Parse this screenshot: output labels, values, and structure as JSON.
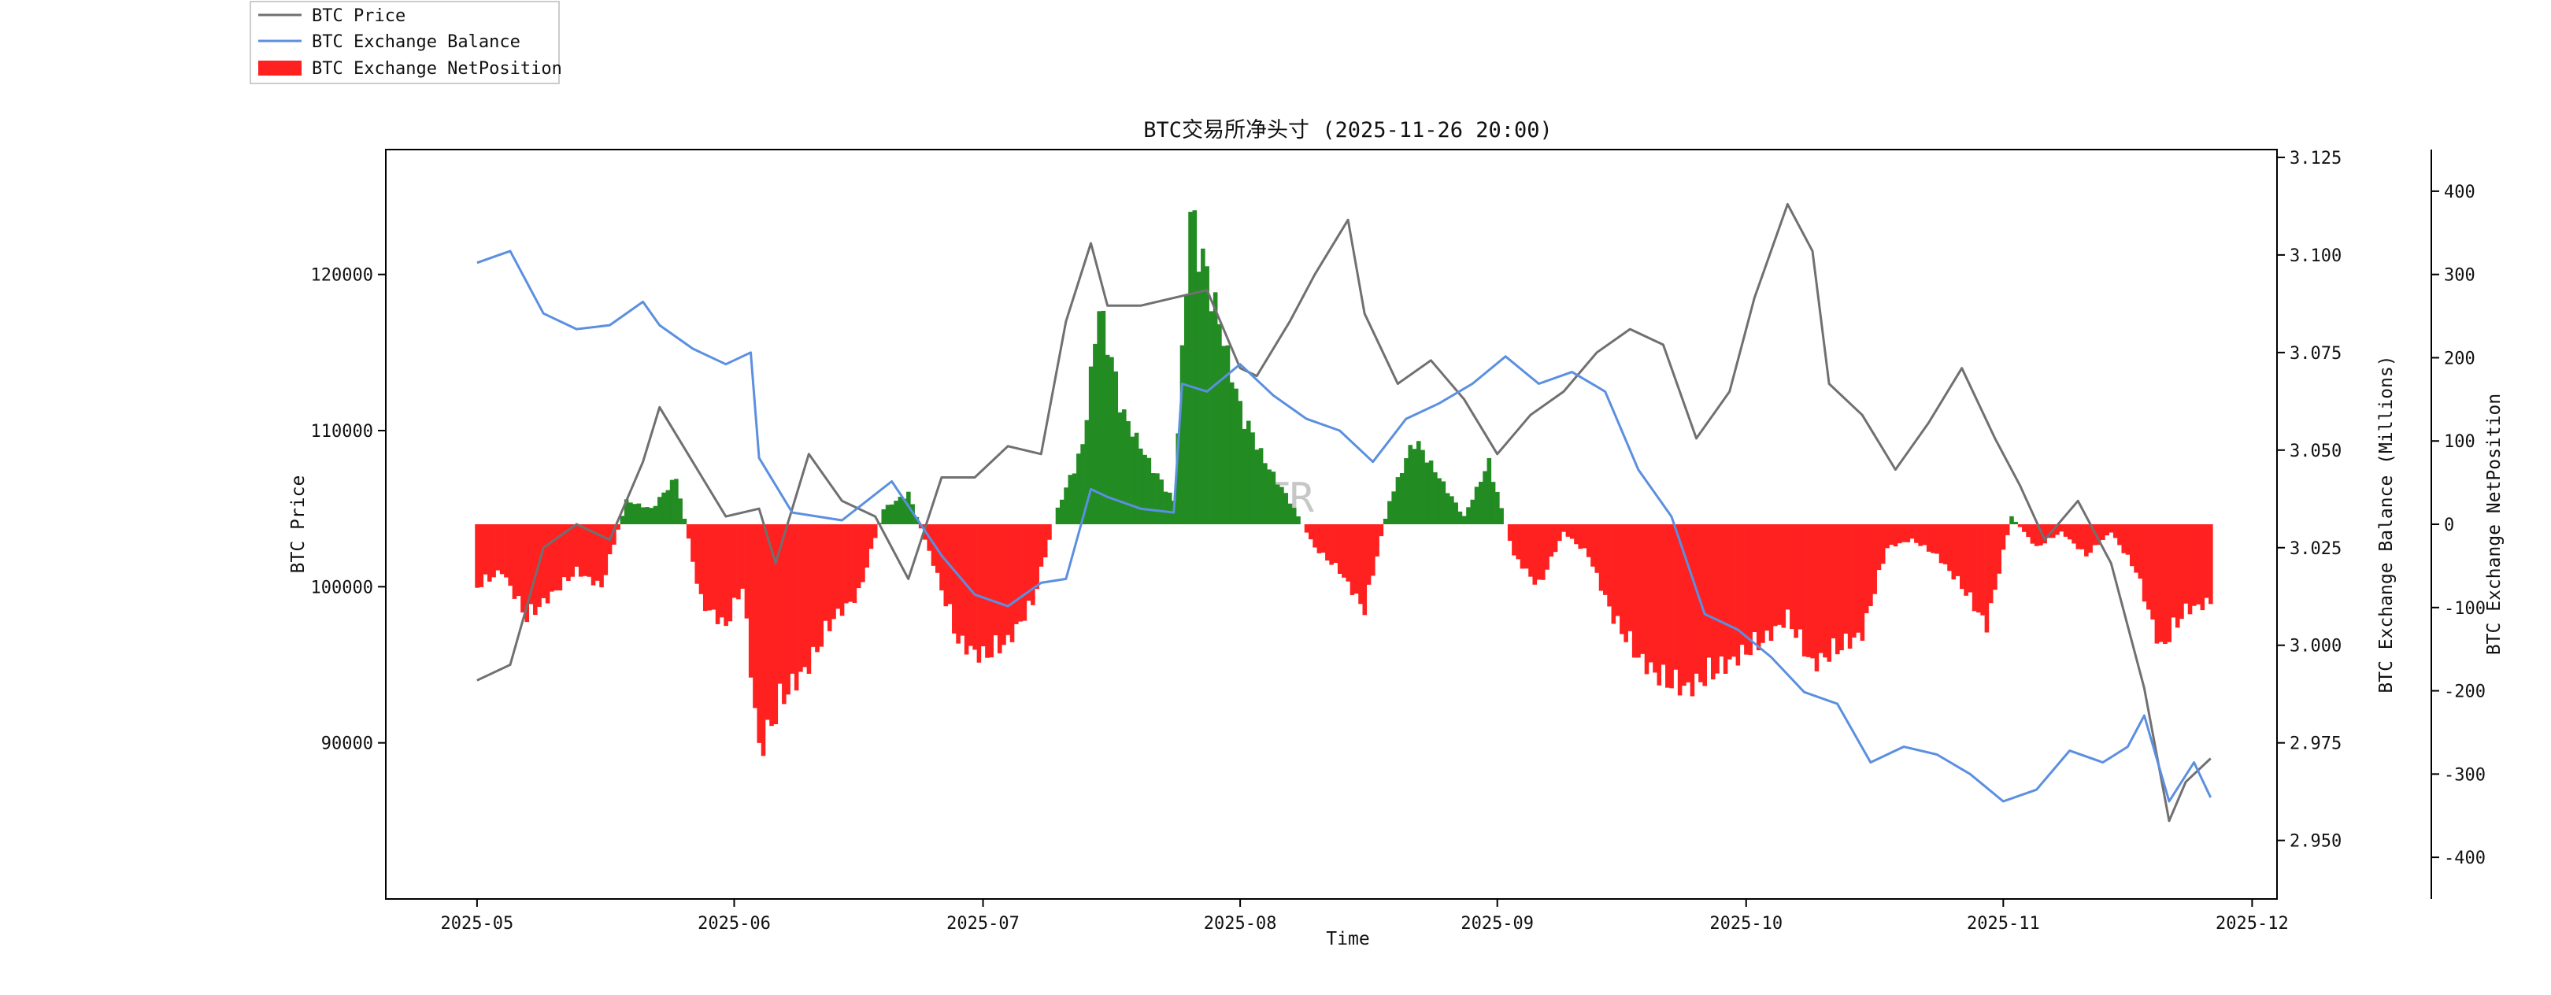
{
  "chart_data": {
    "type": "line",
    "title": "BTC交易所净头寸 (2025-11-26 20:00)",
    "xlabel": "Time",
    "ylabel_left": "BTC Price",
    "ylabel_right1": "BTC Exchange Balance (Millions)",
    "ylabel_right2": "BTC Exchange NetPosition",
    "watermark": "MTR",
    "x_range": [
      "2025-04-20",
      "2025-12-04"
    ],
    "x_ticks": [
      "2025-05",
      "2025-06",
      "2025-07",
      "2025-08",
      "2025-09",
      "2025-10",
      "2025-11",
      "2025-12"
    ],
    "x_tick_dates": [
      "2025-05-01",
      "2025-06-01",
      "2025-07-01",
      "2025-08-01",
      "2025-09-01",
      "2025-10-01",
      "2025-11-01",
      "2025-12-01"
    ],
    "price_axis": {
      "range": [
        80000,
        128000
      ],
      "ticks": [
        "90000",
        "100000",
        "110000",
        "120000"
      ],
      "tick_values": [
        90000,
        100000,
        110000,
        120000
      ]
    },
    "balance_axis": {
      "range": [
        2.935,
        3.127
      ],
      "ticks": [
        "2.950",
        "2.975",
        "3.000",
        "3.025",
        "3.050",
        "3.075",
        "3.100",
        "3.125"
      ],
      "tick_values": [
        2.95,
        2.975,
        3.0,
        3.025,
        3.05,
        3.075,
        3.1,
        3.125
      ]
    },
    "netposition_axis": {
      "range": [
        -450,
        450
      ],
      "ticks": [
        "-400",
        "-300",
        "-200",
        "-100",
        "0",
        "100",
        "200",
        "300",
        "400"
      ],
      "tick_values": [
        -400,
        -300,
        -200,
        -100,
        0,
        100,
        200,
        300,
        400
      ]
    },
    "legend": {
      "placement": "outside-top-left",
      "entries": [
        "BTC Price",
        "BTC Exchange Balance",
        "BTC Exchange NetPosition"
      ]
    },
    "series": [
      {
        "name": "BTC Price",
        "axis": "left",
        "kind": "line",
        "color": "#707070",
        "x": [
          "2025-05-01",
          "2025-05-05",
          "2025-05-09",
          "2025-05-13",
          "2025-05-17",
          "2025-05-21",
          "2025-05-23",
          "2025-05-27",
          "2025-05-31",
          "2025-06-04",
          "2025-06-06",
          "2025-06-10",
          "2025-06-14",
          "2025-06-18",
          "2025-06-22",
          "2025-06-26",
          "2025-06-30",
          "2025-07-04",
          "2025-07-08",
          "2025-07-11",
          "2025-07-14",
          "2025-07-16",
          "2025-07-20",
          "2025-07-24",
          "2025-07-28",
          "2025-08-01",
          "2025-08-03",
          "2025-08-07",
          "2025-08-10",
          "2025-08-14",
          "2025-08-16",
          "2025-08-20",
          "2025-08-24",
          "2025-08-28",
          "2025-09-01",
          "2025-09-05",
          "2025-09-09",
          "2025-09-13",
          "2025-09-17",
          "2025-09-21",
          "2025-09-25",
          "2025-09-29",
          "2025-10-02",
          "2025-10-06",
          "2025-10-09",
          "2025-10-11",
          "2025-10-15",
          "2025-10-19",
          "2025-10-23",
          "2025-10-27",
          "2025-10-31",
          "2025-11-03",
          "2025-11-06",
          "2025-11-10",
          "2025-11-14",
          "2025-11-18",
          "2025-11-21",
          "2025-11-23",
          "2025-11-26"
        ],
        "values": [
          94000,
          95000,
          102500,
          104000,
          103000,
          108000,
          111500,
          108000,
          104500,
          105000,
          101500,
          108500,
          105500,
          104500,
          100500,
          107000,
          107000,
          109000,
          108500,
          117000,
          122000,
          118000,
          118000,
          118500,
          119000,
          114000,
          113500,
          117000,
          120000,
          123500,
          117500,
          113000,
          114500,
          112000,
          108500,
          111000,
          112500,
          115000,
          116500,
          115500,
          109500,
          112500,
          118500,
          124500,
          121500,
          113000,
          111000,
          107500,
          110500,
          114000,
          109500,
          106500,
          103000,
          105500,
          101500,
          93500,
          85000,
          87500,
          89000
        ]
      },
      {
        "name": "BTC Exchange Balance",
        "axis": "right1",
        "kind": "line",
        "color": "#5b8fe0",
        "x": [
          "2025-05-01",
          "2025-05-05",
          "2025-05-09",
          "2025-05-13",
          "2025-05-17",
          "2025-05-21",
          "2025-05-23",
          "2025-05-27",
          "2025-05-31",
          "2025-06-03",
          "2025-06-04",
          "2025-06-08",
          "2025-06-14",
          "2025-06-20",
          "2025-06-26",
          "2025-06-30",
          "2025-07-04",
          "2025-07-08",
          "2025-07-11",
          "2025-07-14",
          "2025-07-16",
          "2025-07-20",
          "2025-07-24",
          "2025-07-25",
          "2025-07-28",
          "2025-08-01",
          "2025-08-05",
          "2025-08-09",
          "2025-08-13",
          "2025-08-17",
          "2025-08-21",
          "2025-08-25",
          "2025-08-29",
          "2025-09-02",
          "2025-09-06",
          "2025-09-10",
          "2025-09-14",
          "2025-09-18",
          "2025-09-22",
          "2025-09-26",
          "2025-09-30",
          "2025-10-04",
          "2025-10-08",
          "2025-10-12",
          "2025-10-16",
          "2025-10-20",
          "2025-10-24",
          "2025-10-28",
          "2025-11-01",
          "2025-11-05",
          "2025-11-09",
          "2025-11-13",
          "2025-11-16",
          "2025-11-18",
          "2025-11-21",
          "2025-11-24",
          "2025-11-26"
        ],
        "values": [
          3.098,
          3.101,
          3.085,
          3.081,
          3.082,
          3.088,
          3.082,
          3.076,
          3.072,
          3.075,
          3.048,
          3.034,
          3.032,
          3.042,
          3.023,
          3.013,
          3.01,
          3.016,
          3.017,
          3.04,
          3.038,
          3.035,
          3.034,
          3.067,
          3.065,
          3.072,
          3.064,
          3.058,
          3.055,
          3.047,
          3.058,
          3.062,
          3.067,
          3.074,
          3.067,
          3.07,
          3.065,
          3.045,
          3.033,
          3.008,
          3.004,
          2.997,
          2.988,
          2.985,
          2.97,
          2.974,
          2.972,
          2.967,
          2.96,
          2.963,
          2.973,
          2.97,
          2.974,
          2.982,
          2.96,
          2.97,
          2.961
        ]
      },
      {
        "name": "BTC Exchange NetPosition",
        "axis": "right2",
        "kind": "bar",
        "positive_color": "#228b22",
        "negative_color": "#ff2020",
        "x": [
          "2025-05-01",
          "2025-05-04",
          "2025-05-07",
          "2025-05-10",
          "2025-05-13",
          "2025-05-16",
          "2025-05-19",
          "2025-05-22",
          "2025-05-25",
          "2025-05-28",
          "2025-05-31",
          "2025-06-02",
          "2025-06-04",
          "2025-06-07",
          "2025-06-10",
          "2025-06-13",
          "2025-06-16",
          "2025-06-19",
          "2025-06-22",
          "2025-06-25",
          "2025-06-28",
          "2025-07-01",
          "2025-07-04",
          "2025-07-07",
          "2025-07-10",
          "2025-07-13",
          "2025-07-15",
          "2025-07-18",
          "2025-07-21",
          "2025-07-24",
          "2025-07-26",
          "2025-07-29",
          "2025-08-01",
          "2025-08-04",
          "2025-08-07",
          "2025-08-10",
          "2025-08-13",
          "2025-08-16",
          "2025-08-19",
          "2025-08-22",
          "2025-08-25",
          "2025-08-28",
          "2025-08-31",
          "2025-09-03",
          "2025-09-06",
          "2025-09-09",
          "2025-09-12",
          "2025-09-15",
          "2025-09-18",
          "2025-09-21",
          "2025-09-24",
          "2025-09-27",
          "2025-09-30",
          "2025-10-03",
          "2025-10-06",
          "2025-10-09",
          "2025-10-12",
          "2025-10-15",
          "2025-10-18",
          "2025-10-21",
          "2025-10-24",
          "2025-10-27",
          "2025-10-30",
          "2025-11-02",
          "2025-11-05",
          "2025-11-08",
          "2025-11-11",
          "2025-11-14",
          "2025-11-17",
          "2025-11-20",
          "2025-11-23",
          "2025-11-26"
        ],
        "values": [
          -80,
          -60,
          -120,
          -90,
          -60,
          -80,
          30,
          20,
          60,
          -100,
          -130,
          -80,
          -290,
          -220,
          -180,
          -120,
          -90,
          20,
          40,
          -50,
          -150,
          -170,
          -150,
          -100,
          20,
          100,
          280,
          140,
          80,
          30,
          400,
          280,
          150,
          80,
          30,
          -30,
          -60,
          -110,
          30,
          110,
          60,
          10,
          80,
          -40,
          -80,
          -10,
          -40,
          -120,
          -170,
          -200,
          -210,
          -190,
          -170,
          -150,
          -120,
          -180,
          -160,
          -140,
          -30,
          -20,
          -40,
          -80,
          -130,
          10,
          -30,
          -10,
          -40,
          -10,
          -60,
          -160,
          -110,
          -100
        ]
      }
    ]
  }
}
